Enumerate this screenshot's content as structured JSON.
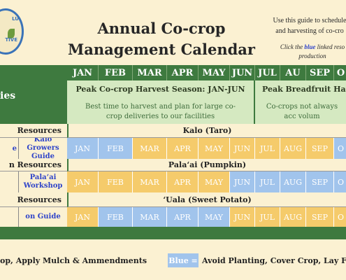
{
  "logo": {
    "top_text": "LU",
    "bottom_text": "TIVE"
  },
  "title": {
    "line1": "Annual Co-crop",
    "line2": "Management Calendar"
  },
  "guide": {
    "line1": "Use this guide to schedule",
    "line2": "and harvesting of co-cro"
  },
  "click_note": {
    "prefix": "Click the ",
    "blue_word": "blue",
    "suffix": " linked reso",
    "line2": "production"
  },
  "months": [
    "JAN",
    "FEB",
    "MAR",
    "APR",
    "MAY",
    "JUN",
    "JUL",
    "AU",
    "SEP",
    "O"
  ],
  "months_row": [
    "JAN",
    "FEB",
    "MAR",
    "APR",
    "MAY",
    "JUN",
    "JUL",
    "AUG",
    "SEP",
    "O"
  ],
  "left_header": "ies",
  "season_cocrop": {
    "title": "Peak Co-crop Harvest Season: JAN-JUN",
    "desc": "Best time to harvest and plan for large co-crop deliveries to our facilities"
  },
  "season_breadfruit": {
    "title": "Peak Breadfruit Harve",
    "desc": "Co-crops not always acc volum"
  },
  "crops": [
    {
      "resources_label": "Resources",
      "name": "Kalo (Taro)",
      "left_link_fragment": "e",
      "link": "Kalo Growers Guide",
      "colors": [
        "b",
        "b",
        "y",
        "y",
        "y",
        "y",
        "y",
        "y",
        "y",
        "b"
      ]
    },
    {
      "resources_label": "n Resources",
      "name": "Pala‘ai (Pumpkin)",
      "left_link_fragment": "",
      "link": "Pala‘ai Workshop",
      "colors": [
        "y",
        "y",
        "y",
        "y",
        "y",
        "b",
        "b",
        "b",
        "b",
        "b"
      ]
    },
    {
      "resources_label": "Resources",
      "name": "‘Uala (Sweet Potato)",
      "left_link_fragment": "",
      "link": "on Guide",
      "colors": [
        "y",
        "b",
        "b",
        "b",
        "b",
        "y",
        "y",
        "y",
        "y",
        "y"
      ]
    }
  ],
  "legend": {
    "yellow_text": "op, Apply Mulch & Ammendments",
    "blue_key": "Blue =",
    "blue_text": "Avoid Planting, Cover Crop, Lay Fallo"
  },
  "colors": {
    "dark_green": "#3e7a3f",
    "light_green": "#d5e9c1",
    "yellow": "#f5cb6b",
    "blue": "#a1c4ec",
    "link_blue": "#2f44c9",
    "background": "#fbf1d2"
  }
}
